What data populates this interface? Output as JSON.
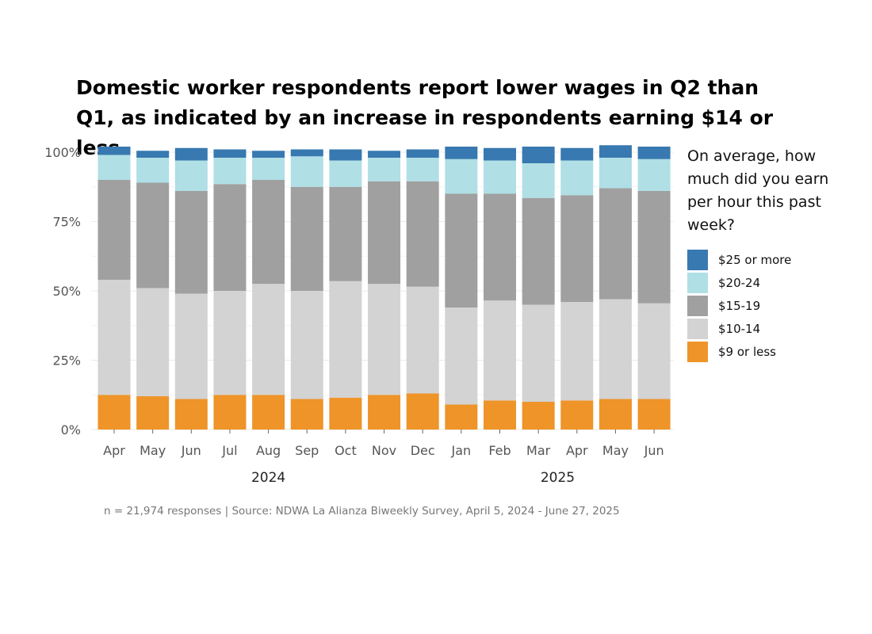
{
  "chart_data": {
    "type": "stacked-bar",
    "title": "Domestic worker respondents report lower wages in Q2 than Q1, as indicated by an increase in respondents earning $14 or less",
    "categories": [
      "Apr",
      "May",
      "Jun",
      "Jul",
      "Aug",
      "Sep",
      "Oct",
      "Nov",
      "Dec",
      "Jan",
      "Feb",
      "Mar",
      "Apr",
      "May",
      "Jun"
    ],
    "years": [
      {
        "label": "2024",
        "start": 0,
        "end": 8
      },
      {
        "label": "2025",
        "start": 9,
        "end": 14
      }
    ],
    "y_ticks": [
      "0%",
      "25%",
      "50%",
      "75%",
      "100%"
    ],
    "ylim": [
      0,
      100
    ],
    "legend_title": "On average, how much did you earn per hour this past week?",
    "series": [
      {
        "name": "$9 or less",
        "color": "#ee9428",
        "values": [
          12.5,
          12,
          11,
          12.5,
          12.5,
          11,
          11.5,
          12.5,
          13,
          9,
          10.5,
          10,
          10.5,
          11,
          11
        ]
      },
      {
        "name": "$10-14",
        "color": "#d3d3d3",
        "values": [
          41.5,
          39,
          38,
          37.5,
          40,
          39,
          42,
          40,
          38.5,
          35,
          36,
          35,
          35.5,
          36,
          34.5
        ]
      },
      {
        "name": "$15-19",
        "color": "#a0a0a0",
        "values": [
          36,
          38,
          37,
          38.5,
          37.5,
          37.5,
          34,
          37,
          38,
          41,
          38.5,
          38.5,
          38.5,
          40,
          40.5
        ]
      },
      {
        "name": "$20-24",
        "color": "#b0dfe5",
        "values": [
          9,
          9,
          11,
          9.5,
          8,
          11,
          9.5,
          8.5,
          8.5,
          12.5,
          12,
          12.5,
          12.5,
          11,
          11.5
        ]
      },
      {
        "name": "$25 or more",
        "color": "#3779b0",
        "values": [
          3,
          2.5,
          4.5,
          3,
          2.5,
          2.5,
          4,
          2.5,
          3,
          4.5,
          4.5,
          6,
          4.5,
          4.5,
          4.5
        ]
      }
    ]
  },
  "caption": "n =  21,974 responses | Source: NDWA La Alianza Biweekly Survey, April 5, 2024 - June 27, 2025"
}
